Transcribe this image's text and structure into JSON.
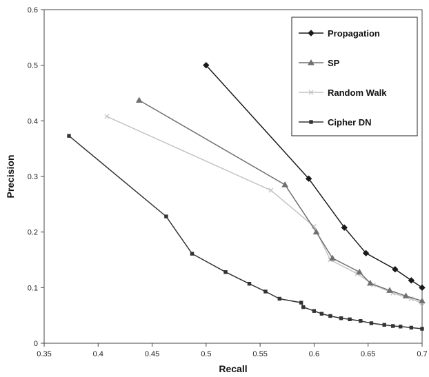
{
  "chart_data": {
    "type": "line",
    "title": "",
    "xlabel": "Recall",
    "ylabel": "Precision",
    "xlim": [
      0.35,
      0.7
    ],
    "ylim": [
      0,
      0.6
    ],
    "x_ticks": [
      "0.35",
      "0.4",
      "0.45",
      "0.5",
      "0.55",
      "0.6",
      "0.65",
      "0.7"
    ],
    "y_ticks": [
      "0",
      "0.1",
      "0.2",
      "0.3",
      "0.4",
      "0.5",
      "0.6"
    ],
    "grid": false,
    "legend_position": "top-right",
    "series": [
      {
        "name": "Propagation",
        "color": "#1a1a1a",
        "marker": "diamond",
        "points": [
          [
            0.5,
            0.5
          ],
          [
            0.595,
            0.296
          ],
          [
            0.628,
            0.208
          ],
          [
            0.648,
            0.162
          ],
          [
            0.675,
            0.133
          ],
          [
            0.69,
            0.113
          ],
          [
            0.7,
            0.1
          ]
        ]
      },
      {
        "name": "SP",
        "color": "#707070",
        "marker": "triangle",
        "points": [
          [
            0.438,
            0.437
          ],
          [
            0.573,
            0.285
          ],
          [
            0.602,
            0.2
          ],
          [
            0.617,
            0.153
          ],
          [
            0.642,
            0.128
          ],
          [
            0.652,
            0.108
          ],
          [
            0.67,
            0.095
          ],
          [
            0.685,
            0.085
          ],
          [
            0.7,
            0.076
          ]
        ]
      },
      {
        "name": "Random Walk",
        "color": "#c4c4c4",
        "marker": "cross",
        "points": [
          [
            0.408,
            0.408
          ],
          [
            0.56,
            0.275
          ],
          [
            0.6,
            0.21
          ],
          [
            0.615,
            0.15
          ],
          [
            0.64,
            0.125
          ],
          [
            0.655,
            0.105
          ],
          [
            0.673,
            0.09
          ],
          [
            0.69,
            0.08
          ],
          [
            0.7,
            0.072
          ]
        ]
      },
      {
        "name": "Cipher DN",
        "color": "#333333",
        "marker": "square",
        "points": [
          [
            0.373,
            0.373
          ],
          [
            0.463,
            0.228
          ],
          [
            0.487,
            0.161
          ],
          [
            0.518,
            0.128
          ],
          [
            0.54,
            0.107
          ],
          [
            0.555,
            0.093
          ],
          [
            0.568,
            0.08
          ],
          [
            0.588,
            0.073
          ],
          [
            0.59,
            0.065
          ],
          [
            0.6,
            0.058
          ],
          [
            0.607,
            0.053
          ],
          [
            0.615,
            0.049
          ],
          [
            0.625,
            0.045
          ],
          [
            0.633,
            0.043
          ],
          [
            0.643,
            0.04
          ],
          [
            0.653,
            0.036
          ],
          [
            0.665,
            0.033
          ],
          [
            0.673,
            0.031
          ],
          [
            0.68,
            0.03
          ],
          [
            0.69,
            0.028
          ],
          [
            0.7,
            0.026
          ]
        ]
      }
    ]
  }
}
